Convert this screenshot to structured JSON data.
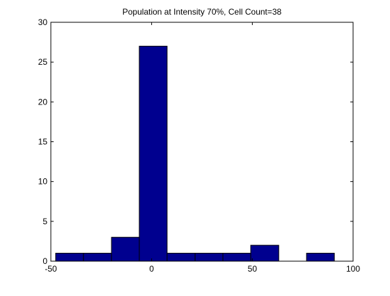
{
  "chart_data": {
    "type": "bar",
    "title": "Population at Intensity 70%, Cell Count=38",
    "xlabel": "",
    "ylabel": "",
    "xlim": [
      -50,
      100
    ],
    "ylim": [
      0,
      30
    ],
    "x_ticks": [
      -50,
      0,
      50,
      100
    ],
    "y_ticks": [
      0,
      5,
      10,
      15,
      20,
      25,
      30
    ],
    "x_tick_labels": [
      "-50",
      "0",
      "50",
      "100"
    ],
    "y_tick_labels": [
      "0",
      "5",
      "10",
      "15",
      "20",
      "25",
      "30"
    ],
    "grid": false,
    "box": true,
    "bin_edges": [
      -47.6,
      -33.8,
      -19.9,
      -6.1,
      7.7,
      21.6,
      35.4,
      49.2,
      63.1,
      76.9,
      90.7
    ],
    "bin_centers": [
      -40.7,
      -26.9,
      -13.0,
      0.8,
      14.7,
      28.5,
      42.3,
      56.2,
      70.0,
      83.8
    ],
    "values": [
      1,
      1,
      3,
      27,
      1,
      1,
      1,
      2,
      0,
      1
    ],
    "bar_color": "#00008F",
    "edge_color": "#000000"
  }
}
